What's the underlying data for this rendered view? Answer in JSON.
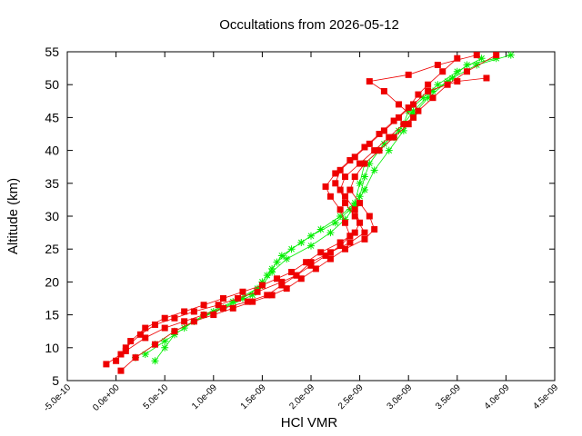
{
  "chart_data": {
    "type": "line",
    "title": "Occultations from 2026-05-12",
    "xlabel": "HCl VMR",
    "ylabel": "Altitude (km)",
    "xlim": [
      -5e-10,
      4.5e-09
    ],
    "ylim": [
      5,
      55
    ],
    "x_ticks": [
      -5e-10,
      0,
      5e-10,
      1e-09,
      1.5e-09,
      2e-09,
      2.5e-09,
      3e-09,
      3.5e-09,
      4e-09,
      4.5e-09
    ],
    "x_tick_labels": [
      "-5.0e-10",
      "0.0e+00",
      "5.0e-10",
      "1.0e-09",
      "1.5e-09",
      "2.0e-09",
      "2.5e-09",
      "3.0e-09",
      "3.5e-09",
      "4.0e-09",
      "4.5e-09"
    ],
    "y_ticks": [
      5,
      10,
      15,
      20,
      25,
      30,
      35,
      40,
      45,
      50,
      55
    ],
    "y_tick_labels": [
      "5",
      "10",
      "15",
      "20",
      "25",
      "30",
      "35",
      "40",
      "45",
      "50",
      "55"
    ],
    "grid": false,
    "legend": "none",
    "colors": {
      "series_green": "#00ee00",
      "series_red": "#ee0000"
    },
    "series": [
      {
        "color": "green",
        "marker": "star",
        "points": [
          [
            4e-10,
            8
          ],
          [
            5e-10,
            10
          ],
          [
            6e-10,
            12
          ],
          [
            8e-10,
            14
          ],
          [
            1.1e-09,
            16
          ],
          [
            1.4e-09,
            18
          ],
          [
            1.5e-09,
            20
          ],
          [
            1.6e-09,
            22
          ],
          [
            1.7e-09,
            24
          ],
          [
            1.9e-09,
            26
          ],
          [
            2.1e-09,
            28
          ],
          [
            2.3e-09,
            30
          ],
          [
            2.45e-09,
            32
          ],
          [
            2.5e-09,
            35
          ],
          [
            2.55e-09,
            38
          ],
          [
            2.7e-09,
            40
          ],
          [
            2.85e-09,
            42
          ],
          [
            2.95e-09,
            44
          ],
          [
            3e-09,
            46
          ],
          [
            3.15e-09,
            48
          ],
          [
            3.3e-09,
            50
          ],
          [
            3.5e-09,
            52
          ],
          [
            3.75e-09,
            54
          ]
        ]
      },
      {
        "color": "green",
        "marker": "star",
        "points": [
          [
            3e-10,
            9
          ],
          [
            5e-10,
            11
          ],
          [
            7e-10,
            13
          ],
          [
            9e-10,
            15
          ],
          [
            1.2e-09,
            17
          ],
          [
            1.45e-09,
            19
          ],
          [
            1.55e-09,
            21
          ],
          [
            1.65e-09,
            23
          ],
          [
            1.8e-09,
            25
          ],
          [
            2e-09,
            27
          ],
          [
            2.25e-09,
            29
          ],
          [
            2.4e-09,
            31
          ],
          [
            2.5e-09,
            33
          ],
          [
            2.55e-09,
            36
          ],
          [
            2.6e-09,
            38
          ],
          [
            2.75e-09,
            41
          ],
          [
            2.9e-09,
            43
          ],
          [
            3.05e-09,
            46
          ],
          [
            3.25e-09,
            49
          ],
          [
            3.45e-09,
            51
          ],
          [
            3.7e-09,
            53
          ],
          [
            4.05e-09,
            54.5
          ]
        ]
      },
      {
        "color": "green",
        "marker": "star",
        "points": [
          [
            2e-10,
            8.5
          ],
          [
            4e-10,
            10.5
          ],
          [
            6e-10,
            12.5
          ],
          [
            1e-09,
            15.5
          ],
          [
            1.3e-09,
            17.5
          ],
          [
            1.5e-09,
            19.5
          ],
          [
            1.6e-09,
            21.5
          ],
          [
            1.75e-09,
            23.5
          ],
          [
            2e-09,
            25.5
          ],
          [
            2.2e-09,
            27.5
          ],
          [
            2.35e-09,
            29.5
          ],
          [
            2.45e-09,
            31.5
          ],
          [
            2.55e-09,
            34
          ],
          [
            2.65e-09,
            37
          ],
          [
            2.8e-09,
            40
          ],
          [
            2.95e-09,
            43
          ],
          [
            3.05e-09,
            45.5
          ],
          [
            3.2e-09,
            48
          ],
          [
            3.4e-09,
            50.5
          ],
          [
            3.6e-09,
            53
          ],
          [
            3.9e-09,
            54
          ]
        ]
      },
      {
        "color": "red",
        "marker": "square",
        "points": [
          [
            -1e-10,
            7.5
          ],
          [
            5e-11,
            9
          ],
          [
            1.5e-10,
            11
          ],
          [
            3e-10,
            13
          ],
          [
            5e-10,
            14.5
          ],
          [
            7e-10,
            15.5
          ],
          [
            9e-10,
            16.5
          ],
          [
            1.1e-09,
            17.5
          ],
          [
            1.3e-09,
            18.5
          ],
          [
            1.5e-09,
            19.5
          ],
          [
            1.65e-09,
            20.5
          ],
          [
            1.8e-09,
            21.5
          ],
          [
            1.95e-09,
            23
          ],
          [
            2.1e-09,
            24.5
          ],
          [
            2.3e-09,
            26
          ],
          [
            2.45e-09,
            27.5
          ],
          [
            2.5e-09,
            29
          ],
          [
            2.45e-09,
            31
          ],
          [
            2.35e-09,
            33
          ],
          [
            2.25e-09,
            35
          ],
          [
            2.3e-09,
            37
          ],
          [
            2.45e-09,
            39
          ],
          [
            2.6e-09,
            41
          ],
          [
            2.75e-09,
            43
          ],
          [
            2.9e-09,
            45
          ],
          [
            3.05e-09,
            47
          ],
          [
            3.2e-09,
            49
          ],
          [
            3.5e-09,
            50.5
          ],
          [
            3.8e-09,
            51
          ]
        ]
      },
      {
        "color": "red",
        "marker": "square",
        "points": [
          [
            5e-11,
            6.5
          ],
          [
            2e-10,
            8.5
          ],
          [
            4e-10,
            10.5
          ],
          [
            6e-10,
            12.5
          ],
          [
            8e-10,
            14
          ],
          [
            1e-09,
            15
          ],
          [
            1.2e-09,
            16
          ],
          [
            1.4e-09,
            17
          ],
          [
            1.6e-09,
            18
          ],
          [
            1.75e-09,
            19
          ],
          [
            1.9e-09,
            20.5
          ],
          [
            2.05e-09,
            22
          ],
          [
            2.2e-09,
            23.5
          ],
          [
            2.35e-09,
            25
          ],
          [
            2.55e-09,
            26.5
          ],
          [
            2.65e-09,
            28
          ],
          [
            2.6e-09,
            30
          ],
          [
            2.5e-09,
            32
          ],
          [
            2.4e-09,
            34
          ],
          [
            2.45e-09,
            36
          ],
          [
            2.55e-09,
            38
          ],
          [
            2.7e-09,
            40
          ],
          [
            2.85e-09,
            42
          ],
          [
            3e-09,
            44
          ],
          [
            3.1e-09,
            46
          ],
          [
            3.25e-09,
            48
          ],
          [
            3.4e-09,
            50
          ],
          [
            3.6e-09,
            52
          ],
          [
            3.9e-09,
            54.5
          ]
        ]
      },
      {
        "color": "red",
        "marker": "square",
        "points": [
          [
            0,
            8
          ],
          [
            1e-10,
            10
          ],
          [
            2.5e-10,
            12
          ],
          [
            4e-10,
            13.5
          ],
          [
            6e-10,
            14.5
          ],
          [
            8e-10,
            15.5
          ],
          [
            1.05e-09,
            16.5
          ],
          [
            1.25e-09,
            17.5
          ],
          [
            1.45e-09,
            18.5
          ],
          [
            1.7e-09,
            20
          ],
          [
            1.85e-09,
            21
          ],
          [
            2e-09,
            22.5
          ],
          [
            2.15e-09,
            24
          ],
          [
            2.3e-09,
            25.5
          ],
          [
            2.4e-09,
            27
          ],
          [
            2.35e-09,
            29
          ],
          [
            2.3e-09,
            31
          ],
          [
            2.2e-09,
            33
          ],
          [
            2.15e-09,
            34.5
          ],
          [
            2.25e-09,
            36.5
          ],
          [
            2.4e-09,
            38.5
          ],
          [
            2.55e-09,
            40.5
          ],
          [
            2.7e-09,
            42.5
          ],
          [
            2.85e-09,
            44.5
          ],
          [
            3e-09,
            46.5
          ],
          [
            3.1e-09,
            48.5
          ],
          [
            3.2e-09,
            50
          ],
          [
            3.35e-09,
            52
          ],
          [
            3.5e-09,
            54
          ]
        ]
      },
      {
        "color": "red",
        "marker": "square",
        "points": [
          [
            1e-10,
            9.5
          ],
          [
            3e-10,
            11.5
          ],
          [
            5e-10,
            13
          ],
          [
            7e-10,
            14
          ],
          [
            9e-10,
            15
          ],
          [
            1.1e-09,
            16
          ],
          [
            1.35e-09,
            17
          ],
          [
            1.55e-09,
            18
          ],
          [
            1.7e-09,
            19.5
          ],
          [
            1.85e-09,
            21
          ],
          [
            2e-09,
            23
          ],
          [
            2.2e-09,
            24.5
          ],
          [
            2.4e-09,
            26
          ],
          [
            2.55e-09,
            27.5
          ],
          [
            2.45e-09,
            30
          ],
          [
            2.35e-09,
            32
          ],
          [
            2.3e-09,
            34
          ],
          [
            2.35e-09,
            36
          ],
          [
            2.5e-09,
            38
          ],
          [
            2.65e-09,
            40
          ],
          [
            2.8e-09,
            42
          ],
          [
            2.95e-09,
            44
          ],
          [
            3.05e-09,
            45
          ],
          [
            2.9e-09,
            47
          ],
          [
            2.75e-09,
            49
          ],
          [
            2.6e-09,
            50.5
          ],
          [
            3e-09,
            51.5
          ],
          [
            3.3e-09,
            53
          ],
          [
            3.7e-09,
            54.5
          ]
        ]
      }
    ]
  }
}
